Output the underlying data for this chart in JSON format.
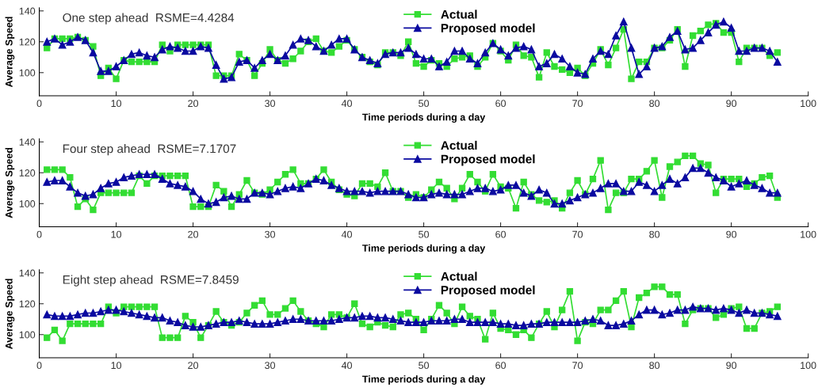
{
  "chart_data": [
    {
      "type": "line",
      "title": "One step ahead  RSME=4.4284",
      "xlabel": "Time periods during a day",
      "ylabel": "Average Speed",
      "xlim": [
        0,
        100
      ],
      "xticks": [
        0,
        10,
        20,
        30,
        40,
        50,
        60,
        70,
        80,
        90,
        100
      ],
      "ylim": [
        85,
        142
      ],
      "yticks": [
        100,
        120,
        140
      ],
      "grid": false,
      "legend": "top",
      "x": [
        1,
        2,
        3,
        4,
        5,
        6,
        7,
        8,
        9,
        10,
        11,
        12,
        13,
        14,
        15,
        16,
        17,
        18,
        19,
        20,
        21,
        22,
        23,
        24,
        25,
        26,
        27,
        28,
        29,
        30,
        31,
        32,
        33,
        34,
        35,
        36,
        37,
        38,
        39,
        40,
        41,
        42,
        43,
        44,
        45,
        46,
        47,
        48,
        49,
        50,
        51,
        52,
        53,
        54,
        55,
        56,
        57,
        58,
        59,
        60,
        61,
        62,
        63,
        64,
        65,
        66,
        67,
        68,
        69,
        70,
        71,
        72,
        73,
        74,
        75,
        76,
        77,
        78,
        79,
        80,
        81,
        82,
        83,
        84,
        85,
        86,
        87,
        88,
        89,
        90,
        91,
        92,
        93,
        94,
        95,
        96
      ],
      "series": [
        {
          "name": "Actual",
          "color": "#33dd33",
          "marker": "square",
          "values": [
            116,
            122,
            122,
            122,
            123,
            121,
            117,
            98,
            103,
            96,
            108,
            107,
            107,
            107,
            107,
            118,
            114,
            118,
            118,
            118,
            118,
            118,
            98,
            98,
            98,
            112,
            108,
            98,
            106,
            115,
            108,
            106,
            109,
            114,
            120,
            122,
            114,
            113,
            117,
            121,
            115,
            110,
            107,
            105,
            113,
            113,
            111,
            120,
            106,
            104,
            108,
            106,
            104,
            109,
            110,
            111,
            104,
            110,
            119,
            114,
            108,
            118,
            111,
            110,
            97,
            113,
            104,
            102,
            100,
            103,
            98,
            106,
            115,
            105,
            116,
            128,
            96,
            107,
            107,
            116,
            116,
            121,
            128,
            104,
            124,
            127,
            131,
            132,
            126,
            126,
            107,
            116,
            116,
            116,
            111,
            113
          ]
        },
        {
          "name": "Proposed model",
          "color": "#0a0aa0",
          "marker": "triangle",
          "values": [
            120,
            122,
            118,
            120,
            123,
            121,
            113,
            101,
            101,
            104,
            108,
            112,
            113,
            111,
            110,
            115,
            117,
            116,
            114,
            114,
            117,
            116,
            105,
            96,
            97,
            107,
            108,
            103,
            108,
            112,
            108,
            111,
            118,
            122,
            121,
            117,
            114,
            118,
            122,
            122,
            115,
            110,
            108,
            106,
            112,
            113,
            113,
            116,
            112,
            109,
            109,
            104,
            107,
            114,
            114,
            109,
            106,
            113,
            119,
            115,
            111,
            116,
            117,
            115,
            104,
            106,
            112,
            109,
            104,
            100,
            99,
            109,
            114,
            112,
            124,
            133,
            116,
            99,
            104,
            116,
            117,
            123,
            127,
            115,
            116,
            121,
            126,
            131,
            133,
            129,
            114,
            114,
            116,
            116,
            114,
            107
          ]
        }
      ]
    },
    {
      "type": "line",
      "title": "Four step ahead  RSME=7.1707",
      "xlabel": "Time periods during a day",
      "ylabel": "Average Speed",
      "xlim": [
        0,
        100
      ],
      "xticks": [
        0,
        10,
        20,
        30,
        40,
        50,
        60,
        70,
        80,
        90,
        100
      ],
      "ylim": [
        85,
        142
      ],
      "yticks": [
        100,
        120,
        140
      ],
      "grid": false,
      "legend": "top",
      "x": [
        1,
        2,
        3,
        4,
        5,
        6,
        7,
        8,
        9,
        10,
        11,
        12,
        13,
        14,
        15,
        16,
        17,
        18,
        19,
        20,
        21,
        22,
        23,
        24,
        25,
        26,
        27,
        28,
        29,
        30,
        31,
        32,
        33,
        34,
        35,
        36,
        37,
        38,
        39,
        40,
        41,
        42,
        43,
        44,
        45,
        46,
        47,
        48,
        49,
        50,
        51,
        52,
        53,
        54,
        55,
        56,
        57,
        58,
        59,
        60,
        61,
        62,
        63,
        64,
        65,
        66,
        67,
        68,
        69,
        70,
        71,
        72,
        73,
        74,
        75,
        76,
        77,
        78,
        79,
        80,
        81,
        82,
        83,
        84,
        85,
        86,
        87,
        88,
        89,
        90,
        91,
        92,
        93,
        94,
        95,
        96
      ],
      "series": [
        {
          "name": "Actual",
          "color": "#33dd33",
          "marker": "square",
          "values": [
            122,
            122,
            122,
            117,
            98,
            103,
            96,
            107,
            107,
            107,
            107,
            107,
            118,
            113,
            118,
            118,
            118,
            118,
            118,
            98,
            98,
            98,
            112,
            108,
            98,
            106,
            115,
            107,
            106,
            109,
            114,
            119,
            122,
            113,
            113,
            116,
            122,
            114,
            109,
            106,
            105,
            113,
            113,
            111,
            120,
            108,
            108,
            104,
            106,
            104,
            109,
            114,
            110,
            103,
            110,
            119,
            114,
            108,
            119,
            111,
            110,
            97,
            114,
            106,
            102,
            101,
            102,
            97,
            107,
            115,
            106,
            116,
            128,
            96,
            107,
            107,
            116,
            116,
            121,
            128,
            104,
            124,
            127,
            131,
            131,
            126,
            125,
            107,
            116,
            116,
            116,
            111,
            113,
            117,
            118,
            104
          ]
        },
        {
          "name": "Proposed model",
          "color": "#0a0aa0",
          "marker": "triangle",
          "values": [
            114,
            115,
            115,
            111,
            107,
            105,
            106,
            110,
            113,
            114,
            117,
            118,
            119,
            119,
            119,
            116,
            113,
            112,
            111,
            108,
            103,
            100,
            101,
            104,
            105,
            103,
            103,
            107,
            107,
            106,
            108,
            110,
            111,
            110,
            113,
            116,
            115,
            112,
            110,
            108,
            108,
            108,
            107,
            108,
            108,
            108,
            108,
            106,
            104,
            104,
            106,
            107,
            106,
            106,
            106,
            108,
            110,
            110,
            108,
            109,
            112,
            112,
            107,
            105,
            109,
            107,
            100,
            100,
            102,
            104,
            106,
            107,
            110,
            113,
            113,
            108,
            108,
            114,
            112,
            108,
            112,
            116,
            113,
            117,
            123,
            123,
            120,
            117,
            115,
            111,
            113,
            115,
            112,
            110,
            107,
            107
          ]
        }
      ]
    },
    {
      "type": "line",
      "title": "Eight step ahead  RSME=7.8459",
      "xlabel": "Time periods during a day",
      "ylabel": "Average Speed",
      "xlim": [
        0,
        100
      ],
      "xticks": [
        0,
        10,
        20,
        30,
        40,
        50,
        60,
        70,
        80,
        90,
        100
      ],
      "ylim": [
        85,
        142
      ],
      "yticks": [
        100,
        120,
        140
      ],
      "grid": false,
      "legend": "top",
      "x": [
        1,
        2,
        3,
        4,
        5,
        6,
        7,
        8,
        9,
        10,
        11,
        12,
        13,
        14,
        15,
        16,
        17,
        18,
        19,
        20,
        21,
        22,
        23,
        24,
        25,
        26,
        27,
        28,
        29,
        30,
        31,
        32,
        33,
        34,
        35,
        36,
        37,
        38,
        39,
        40,
        41,
        42,
        43,
        44,
        45,
        46,
        47,
        48,
        49,
        50,
        51,
        52,
        53,
        54,
        55,
        56,
        57,
        58,
        59,
        60,
        61,
        62,
        63,
        64,
        65,
        66,
        67,
        68,
        69,
        70,
        71,
        72,
        73,
        74,
        75,
        76,
        77,
        78,
        79,
        80,
        81,
        82,
        83,
        84,
        85,
        86,
        87,
        88,
        89,
        90,
        91,
        92,
        93,
        94,
        95,
        96
      ],
      "series": [
        {
          "name": "Actual",
          "color": "#33dd33",
          "marker": "square",
          "values": [
            98,
            103,
            96,
            107,
            107,
            107,
            107,
            107,
            118,
            114,
            118,
            118,
            118,
            118,
            118,
            98,
            98,
            98,
            112,
            108,
            98,
            106,
            115,
            108,
            106,
            108,
            114,
            119,
            122,
            113,
            113,
            117,
            122,
            115,
            109,
            107,
            105,
            113,
            113,
            111,
            120,
            107,
            105,
            108,
            106,
            105,
            113,
            114,
            110,
            103,
            110,
            119,
            114,
            107,
            118,
            112,
            110,
            97,
            114,
            104,
            103,
            100,
            103,
            98,
            107,
            115,
            105,
            116,
            128,
            96,
            108,
            107,
            116,
            116,
            122,
            128,
            105,
            124,
            127,
            131,
            131,
            126,
            126,
            107,
            116,
            117,
            117,
            111,
            113,
            117,
            118,
            104,
            104,
            114,
            115,
            118
          ]
        },
        {
          "name": "Proposed model",
          "color": "#0a0aa0",
          "marker": "triangle",
          "values": [
            113,
            112,
            112,
            112,
            113,
            114,
            114,
            115,
            116,
            116,
            115,
            114,
            113,
            112,
            111,
            111,
            109,
            108,
            106,
            105,
            105,
            106,
            107,
            108,
            108,
            109,
            108,
            107,
            107,
            107,
            108,
            109,
            110,
            110,
            109,
            109,
            109,
            109,
            110,
            111,
            111,
            112,
            112,
            111,
            111,
            110,
            109,
            108,
            108,
            108,
            109,
            109,
            109,
            110,
            110,
            108,
            108,
            108,
            108,
            107,
            107,
            106,
            106,
            107,
            107,
            108,
            108,
            108,
            108,
            108,
            109,
            110,
            109,
            106,
            106,
            107,
            109,
            113,
            116,
            116,
            113,
            114,
            116,
            116,
            118,
            117,
            117,
            116,
            117,
            116,
            114,
            116,
            114,
            114,
            113,
            112
          ]
        }
      ]
    }
  ]
}
